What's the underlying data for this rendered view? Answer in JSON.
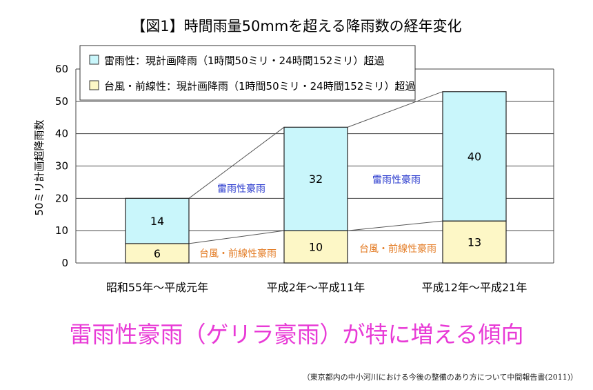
{
  "title": "【図1】時間雨量50mmを超える降雨数の経年変化",
  "headline": "雷雨性豪雨（ゲリラ豪雨）が特に増える傾向",
  "source": "（東京都内の中小河川における今後の整備のあり方について中間報告書(2011)）",
  "colors": {
    "thunder": "#c9f6fb",
    "typhoon": "#fdf7c6",
    "grid": "#444444"
  },
  "chart_data": {
    "type": "bar",
    "stacked": true,
    "categories": [
      "昭和55年～平成元年",
      "平成2年～平成11年",
      "平成12年～平成21年"
    ],
    "series": [
      {
        "name": "台風・前線性：現計画降雨（1時間50ミリ・24時間152ミリ）超過",
        "values": [
          6,
          10,
          13
        ]
      },
      {
        "name": "雷雨性：現計画降雨（1時間50ミリ・24時間152ミリ）超過",
        "values": [
          14,
          32,
          40
        ]
      }
    ],
    "ylabel": "50ミリ計画超降雨数",
    "ylim": [
      0,
      60
    ],
    "yticks": [
      0,
      10,
      20,
      30,
      40,
      50,
      60
    ],
    "grid": true,
    "legend": "top-left",
    "annotations": {
      "thunder": "雷雨性豪雨",
      "typhoon": "台風・前線性豪雨"
    }
  }
}
